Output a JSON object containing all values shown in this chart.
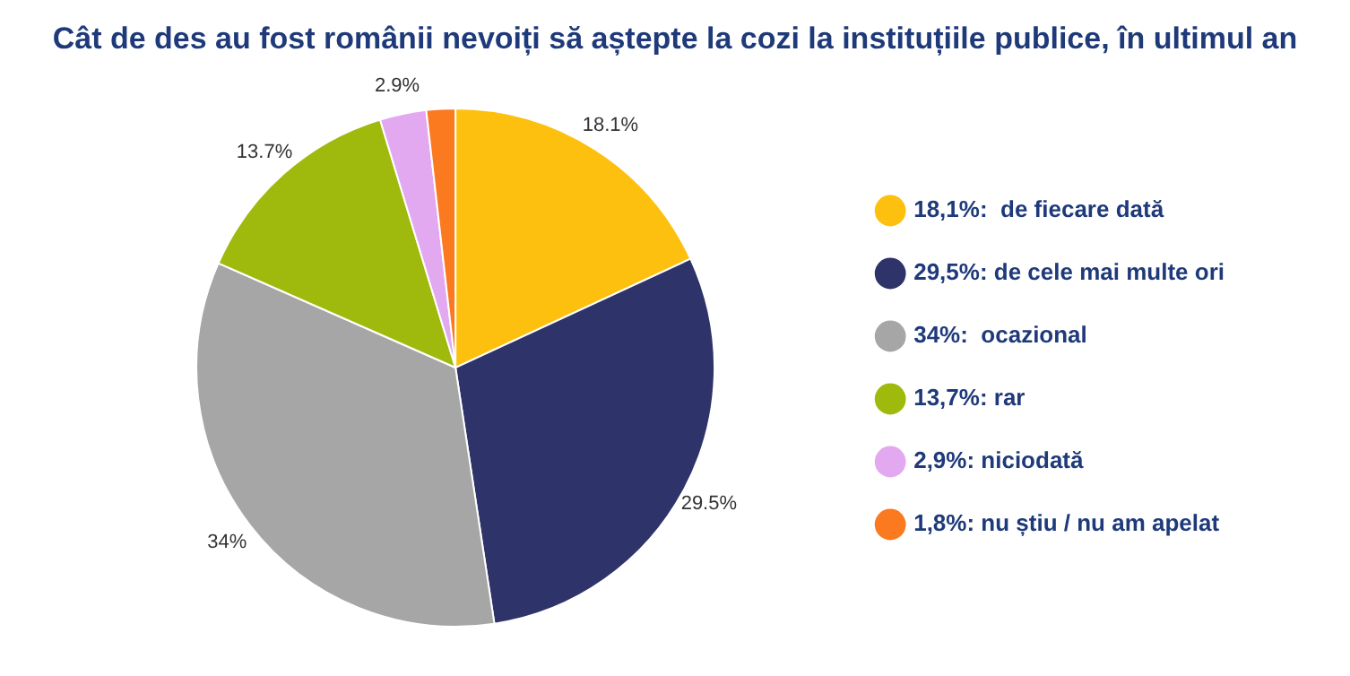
{
  "chart_data": {
    "type": "pie",
    "title": "Cât de des au fost românii nevoiți să aștepte la cozi la instituțiile publice, în ultimul an",
    "categories": [
      "18,1%:  de fiecare dată",
      "29,5%: de cele mai multe ori",
      "34%:  ocazional",
      "13,7%: rar",
      "2,9%: niciodată",
      "1,8%: nu știu / nu am apelat"
    ],
    "values": [
      18.1,
      29.5,
      34,
      13.7,
      2.9,
      1.8
    ],
    "colors": [
      "#fdc00f",
      "#2e3369",
      "#a6a6a6",
      "#9fba0c",
      "#e2a9f0",
      "#fb7a20"
    ],
    "value_labels": [
      "18.1%",
      "29.5%",
      "34%",
      "13.7%",
      "2.9%",
      null
    ],
    "legend": "right"
  }
}
